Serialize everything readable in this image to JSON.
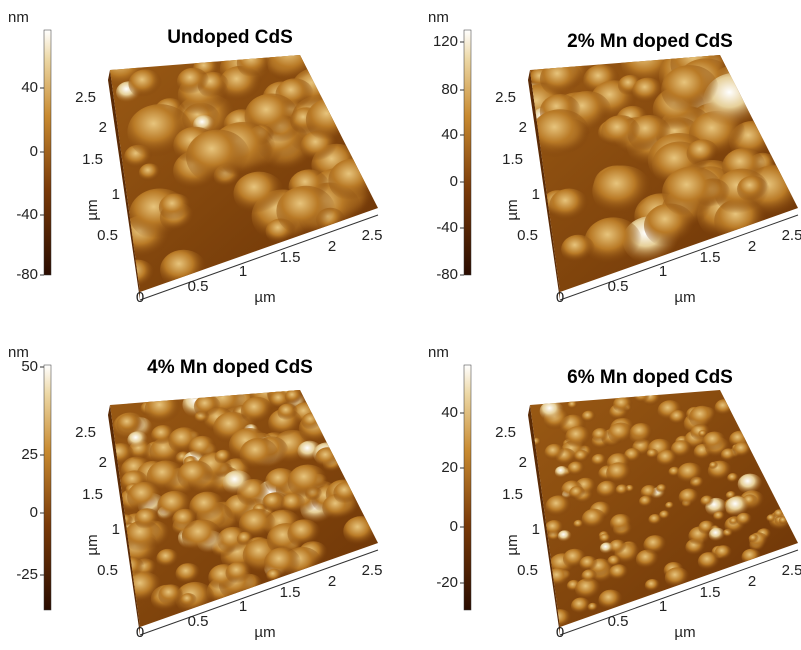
{
  "panels": [
    {
      "title": "Undoped CdS",
      "unit": "nm",
      "colorbar_ticks": [
        "40",
        "0",
        "-40",
        "-80"
      ],
      "y_ticks": [
        "2.5",
        "2",
        "1.5",
        "1",
        "0.5"
      ],
      "x_ticks": [
        "0",
        "0.5",
        "1",
        "1.5",
        "2",
        "2.5"
      ],
      "y_label": "µm",
      "x_label": "µm"
    },
    {
      "title": "2% Mn doped CdS",
      "unit": "nm",
      "colorbar_ticks": [
        "120",
        "80",
        "40",
        "0",
        "-40",
        "-80"
      ],
      "y_ticks": [
        "2.5",
        "2",
        "1.5",
        "1",
        "0.5"
      ],
      "x_ticks": [
        "0",
        "0.5",
        "1",
        "1.5",
        "2",
        "2.5"
      ],
      "y_label": "µm",
      "x_label": "µm"
    },
    {
      "title": "4% Mn doped CdS",
      "unit": "nm",
      "colorbar_ticks": [
        "50",
        "25",
        "0",
        "-25"
      ],
      "y_ticks": [
        "2.5",
        "2",
        "1.5",
        "1",
        "0.5"
      ],
      "x_ticks": [
        "0",
        "0.5",
        "1",
        "1.5",
        "2",
        "2.5"
      ],
      "y_label": "µm",
      "x_label": "µm"
    },
    {
      "title": "6% Mn doped CdS",
      "unit": "nm",
      "colorbar_ticks": [
        "40",
        "20",
        "0",
        "-20"
      ],
      "y_ticks": [
        "2.5",
        "2",
        "1.5",
        "1",
        "0.5"
      ],
      "x_ticks": [
        "0",
        "0.5",
        "1",
        "1.5",
        "2",
        "2.5"
      ],
      "y_label": "µm",
      "x_label": "µm"
    }
  ]
}
